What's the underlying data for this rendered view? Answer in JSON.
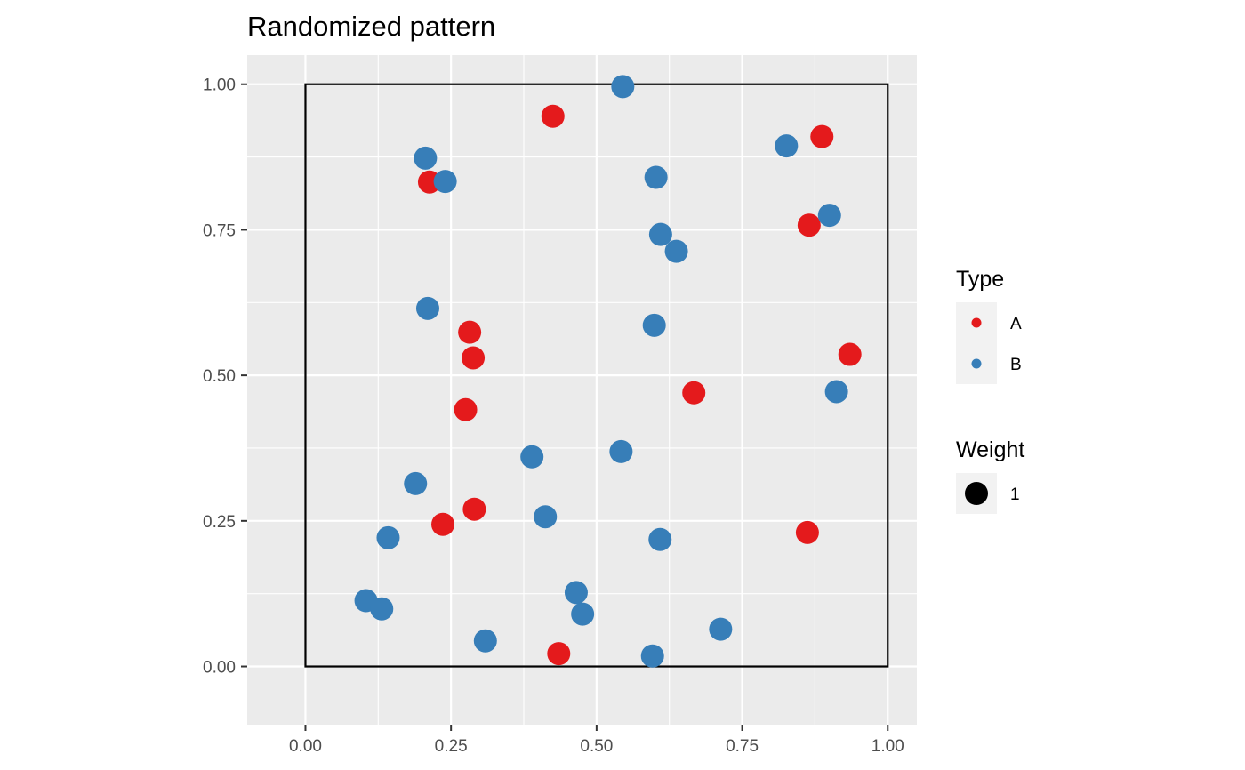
{
  "chart_data": {
    "type": "scatter",
    "title": "Randomized pattern",
    "xlabel": "",
    "ylabel": "",
    "xlim": [
      -0.1,
      1.05
    ],
    "ylim": [
      -0.1,
      1.05
    ],
    "x_ticks": [
      0.0,
      0.25,
      0.5,
      0.75,
      1.0
    ],
    "x_tick_labels": [
      "0.00",
      "0.25",
      "0.50",
      "0.75",
      "1.00"
    ],
    "y_ticks": [
      0.0,
      0.25,
      0.5,
      0.75,
      1.0
    ],
    "y_tick_labels": [
      "0.00",
      "0.25",
      "0.50",
      "0.75",
      "1.00"
    ],
    "grid": true,
    "window": {
      "xmin": 0,
      "xmax": 1,
      "ymin": 0,
      "ymax": 1
    },
    "series": [
      {
        "name": "A",
        "color": "#e41a1c",
        "points": [
          [
            0.425,
            0.945
          ],
          [
            0.887,
            0.91
          ],
          [
            0.213,
            0.832
          ],
          [
            0.865,
            0.758
          ],
          [
            0.282,
            0.574
          ],
          [
            0.288,
            0.53
          ],
          [
            0.935,
            0.536
          ],
          [
            0.667,
            0.47
          ],
          [
            0.275,
            0.441
          ],
          [
            0.29,
            0.27
          ],
          [
            0.236,
            0.244
          ],
          [
            0.862,
            0.23
          ],
          [
            0.435,
            0.022
          ]
        ]
      },
      {
        "name": "B",
        "color": "#377eb8",
        "points": [
          [
            0.545,
            0.996
          ],
          [
            0.826,
            0.894
          ],
          [
            0.206,
            0.873
          ],
          [
            0.24,
            0.833
          ],
          [
            0.602,
            0.84
          ],
          [
            0.9,
            0.775
          ],
          [
            0.61,
            0.742
          ],
          [
            0.637,
            0.713
          ],
          [
            0.21,
            0.615
          ],
          [
            0.599,
            0.586
          ],
          [
            0.912,
            0.472
          ],
          [
            0.542,
            0.369
          ],
          [
            0.389,
            0.36
          ],
          [
            0.189,
            0.314
          ],
          [
            0.412,
            0.257
          ],
          [
            0.142,
            0.221
          ],
          [
            0.609,
            0.218
          ],
          [
            0.465,
            0.127
          ],
          [
            0.104,
            0.113
          ],
          [
            0.131,
            0.099
          ],
          [
            0.476,
            0.09
          ],
          [
            0.713,
            0.064
          ],
          [
            0.309,
            0.044
          ],
          [
            0.596,
            0.018
          ]
        ]
      }
    ],
    "legend": {
      "position": "right",
      "type_title": "Type",
      "type_entries": [
        {
          "label": "A",
          "color": "#e41a1c"
        },
        {
          "label": "B",
          "color": "#377eb8"
        }
      ],
      "weight_title": "Weight",
      "weight_entries": [
        {
          "label": "1",
          "color": "#000000"
        }
      ]
    }
  }
}
